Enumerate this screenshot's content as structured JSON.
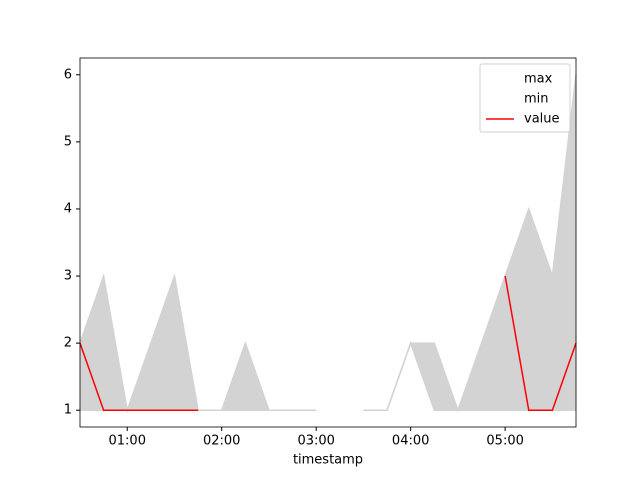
{
  "chart_data": {
    "type": "line",
    "xlabel": "timestamp",
    "x": [
      "00:30",
      "00:45",
      "01:00",
      "01:15",
      "01:30",
      "01:45",
      "02:00",
      "02:15",
      "02:30",
      "02:45",
      "03:00",
      "03:15",
      "03:30",
      "03:45",
      "04:00",
      "04:15",
      "04:30",
      "04:45",
      "05:00",
      "05:15",
      "05:30",
      "05:45"
    ],
    "series": [
      {
        "name": "max",
        "color": "#d3d3d3",
        "values": [
          2,
          3,
          1,
          2,
          3,
          1,
          1,
          2,
          1,
          1,
          1,
          null,
          1,
          1,
          2,
          2,
          1,
          2,
          3,
          4,
          3,
          6
        ]
      },
      {
        "name": "min",
        "color": "#d3d3d3",
        "values": [
          1,
          1,
          1,
          1,
          1,
          1,
          1,
          1,
          1,
          1,
          1,
          null,
          1,
          1,
          2,
          1,
          1,
          1,
          1,
          1,
          1,
          1
        ]
      },
      {
        "name": "value",
        "color": "#ff0000",
        "values": [
          2,
          1,
          1,
          1,
          1,
          1,
          null,
          null,
          null,
          null,
          null,
          null,
          null,
          null,
          null,
          null,
          null,
          null,
          3,
          1,
          1,
          2
        ]
      }
    ],
    "fill_between": [
      "max",
      "min"
    ],
    "xlim": [
      "00:30",
      "05:45"
    ],
    "xticks": [
      "01:00",
      "02:00",
      "03:00",
      "04:00",
      "05:00"
    ],
    "ylim": [
      0.75,
      6.25
    ],
    "yticks": [
      1,
      2,
      3,
      4,
      5,
      6
    ],
    "legend": "upper right"
  }
}
